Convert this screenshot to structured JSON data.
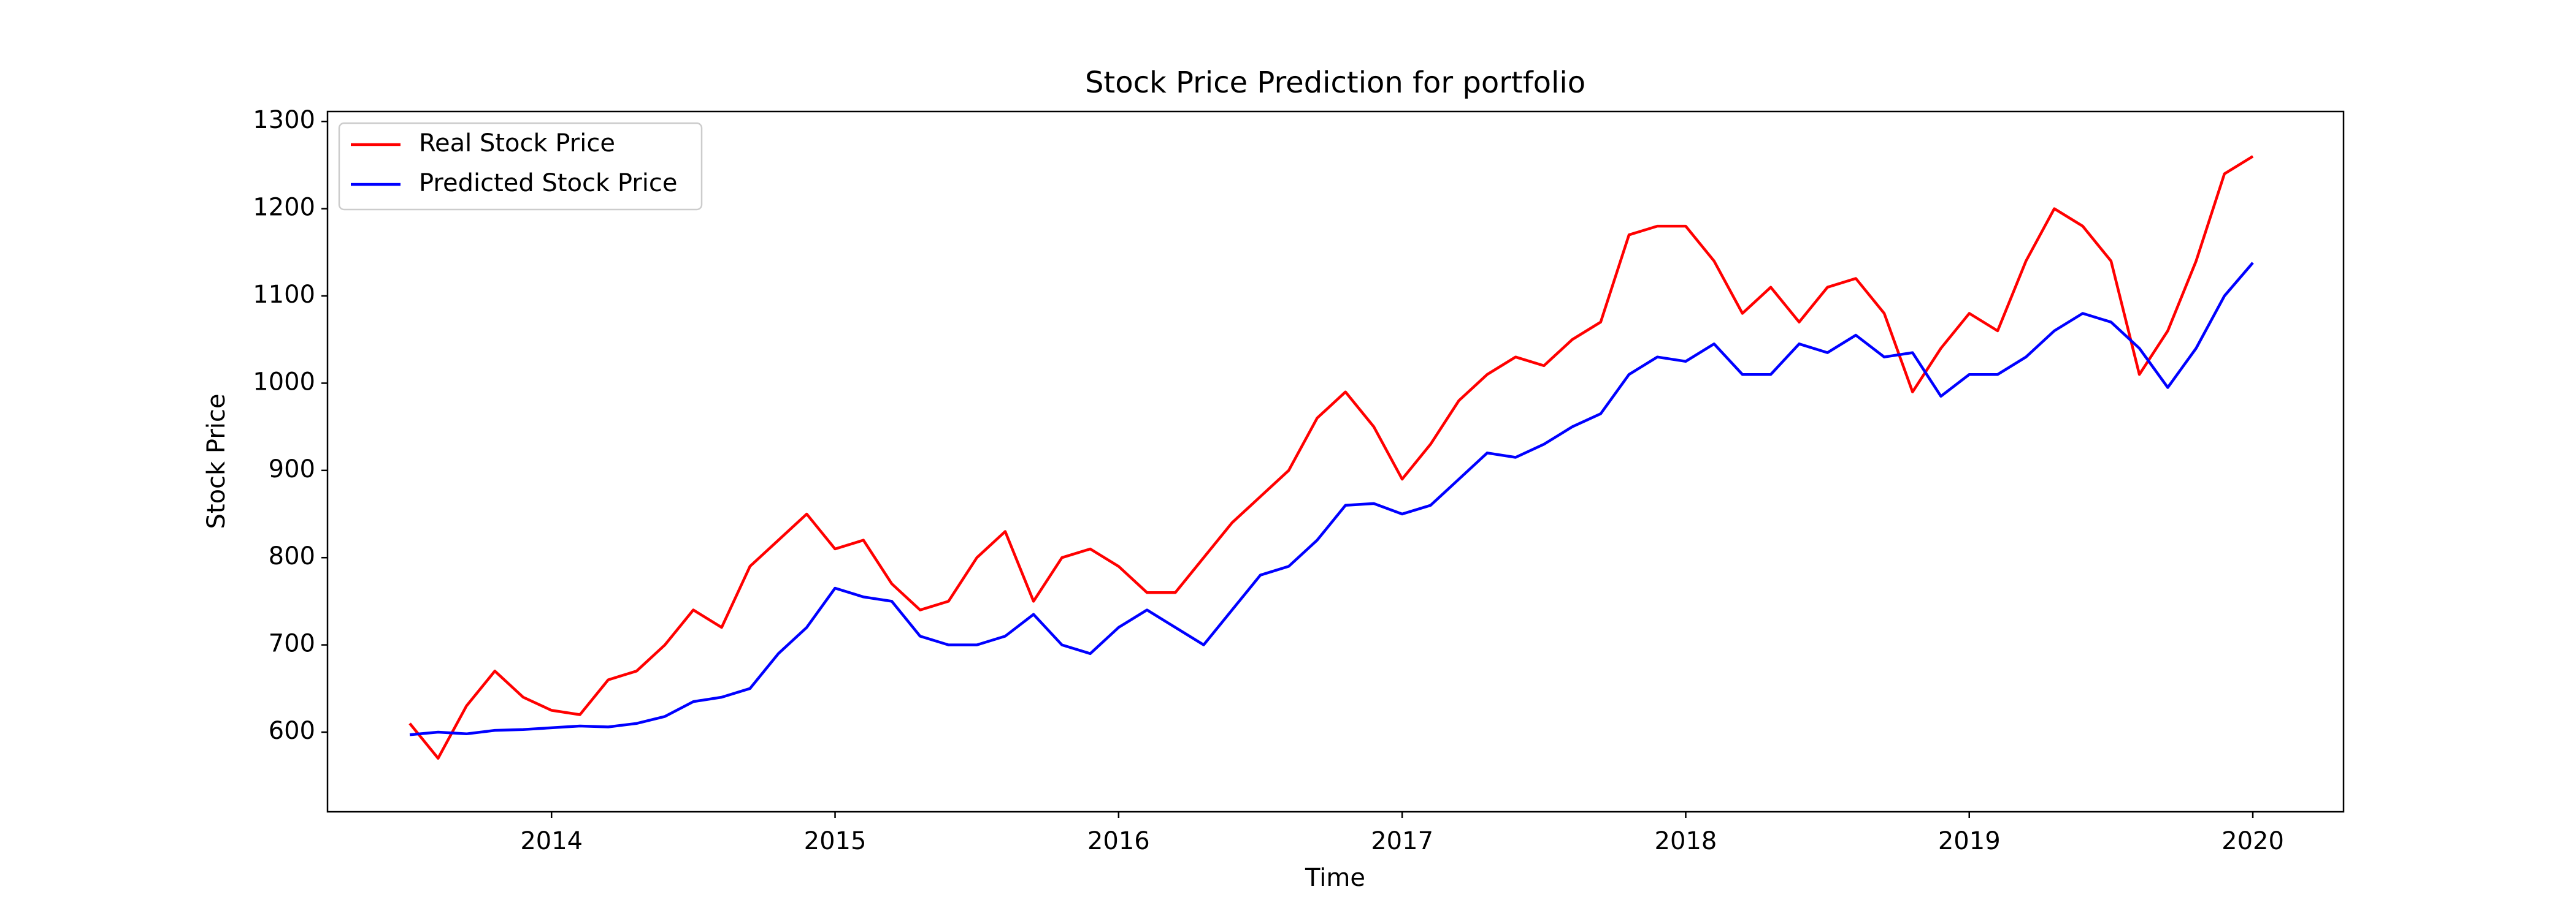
{
  "chart_data": {
    "type": "line",
    "title": "Stock Price Prediction for portfolio",
    "x_label": "Time",
    "y_label": "Stock Price",
    "x": [
      2013.5,
      2013.6,
      2013.7,
      2013.8,
      2013.9,
      2014.0,
      2014.1,
      2014.2,
      2014.3,
      2014.4,
      2014.5,
      2014.6,
      2014.7,
      2014.8,
      2014.9,
      2015.0,
      2015.1,
      2015.2,
      2015.3,
      2015.4,
      2015.5,
      2015.6,
      2015.7,
      2015.8,
      2015.9,
      2016.0,
      2016.1,
      2016.2,
      2016.3,
      2016.4,
      2016.5,
      2016.6,
      2016.7,
      2016.8,
      2016.9,
      2017.0,
      2017.1,
      2017.2,
      2017.3,
      2017.4,
      2017.5,
      2017.6,
      2017.7,
      2017.8,
      2017.9,
      2018.0,
      2018.1,
      2018.2,
      2018.3,
      2018.4,
      2018.5,
      2018.6,
      2018.7,
      2018.8,
      2018.9,
      2019.0,
      2019.1,
      2019.2,
      2019.3,
      2019.4,
      2019.5,
      2019.6,
      2019.7,
      2019.8,
      2019.9,
      2020.0
    ],
    "series": [
      {
        "name": "Real Stock Price",
        "color": "#ff0000",
        "values": [
          610,
          570,
          630,
          670,
          640,
          625,
          620,
          660,
          670,
          700,
          740,
          720,
          790,
          820,
          850,
          810,
          820,
          770,
          740,
          750,
          800,
          830,
          750,
          800,
          810,
          790,
          760,
          760,
          800,
          840,
          870,
          900,
          960,
          990,
          950,
          890,
          930,
          980,
          1010,
          1030,
          1020,
          1050,
          1070,
          1170,
          1180,
          1180,
          1140,
          1080,
          1110,
          1070,
          1110,
          1120,
          1080,
          990,
          1040,
          1080,
          1060,
          1140,
          1200,
          1180,
          1140,
          1010,
          1060,
          1140,
          1240,
          1260
        ]
      },
      {
        "name": "Predicted Stock Price",
        "color": "#0000ff",
        "values": [
          597,
          600,
          598,
          602,
          603,
          605,
          607,
          606,
          610,
          618,
          635,
          640,
          650,
          690,
          720,
          765,
          755,
          750,
          710,
          700,
          700,
          710,
          735,
          700,
          690,
          720,
          740,
          720,
          700,
          740,
          780,
          790,
          820,
          860,
          862,
          850,
          860,
          890,
          920,
          915,
          930,
          950,
          965,
          1010,
          1030,
          1025,
          1045,
          1010,
          1010,
          1045,
          1035,
          1055,
          1030,
          1035,
          985,
          1010,
          1010,
          1030,
          1060,
          1080,
          1070,
          1040,
          995,
          1040,
          1100,
          1138
        ]
      }
    ],
    "xlim": [
      2013.21,
      2020.32
    ],
    "xticks": [
      2014,
      2015,
      2016,
      2017,
      2018,
      2019,
      2020
    ],
    "ylim": [
      508.7,
      1311.4
    ],
    "yticks": [
      600,
      700,
      800,
      900,
      1000,
      1100,
      1200,
      1300
    ],
    "grid": false,
    "legend": "upper left"
  }
}
